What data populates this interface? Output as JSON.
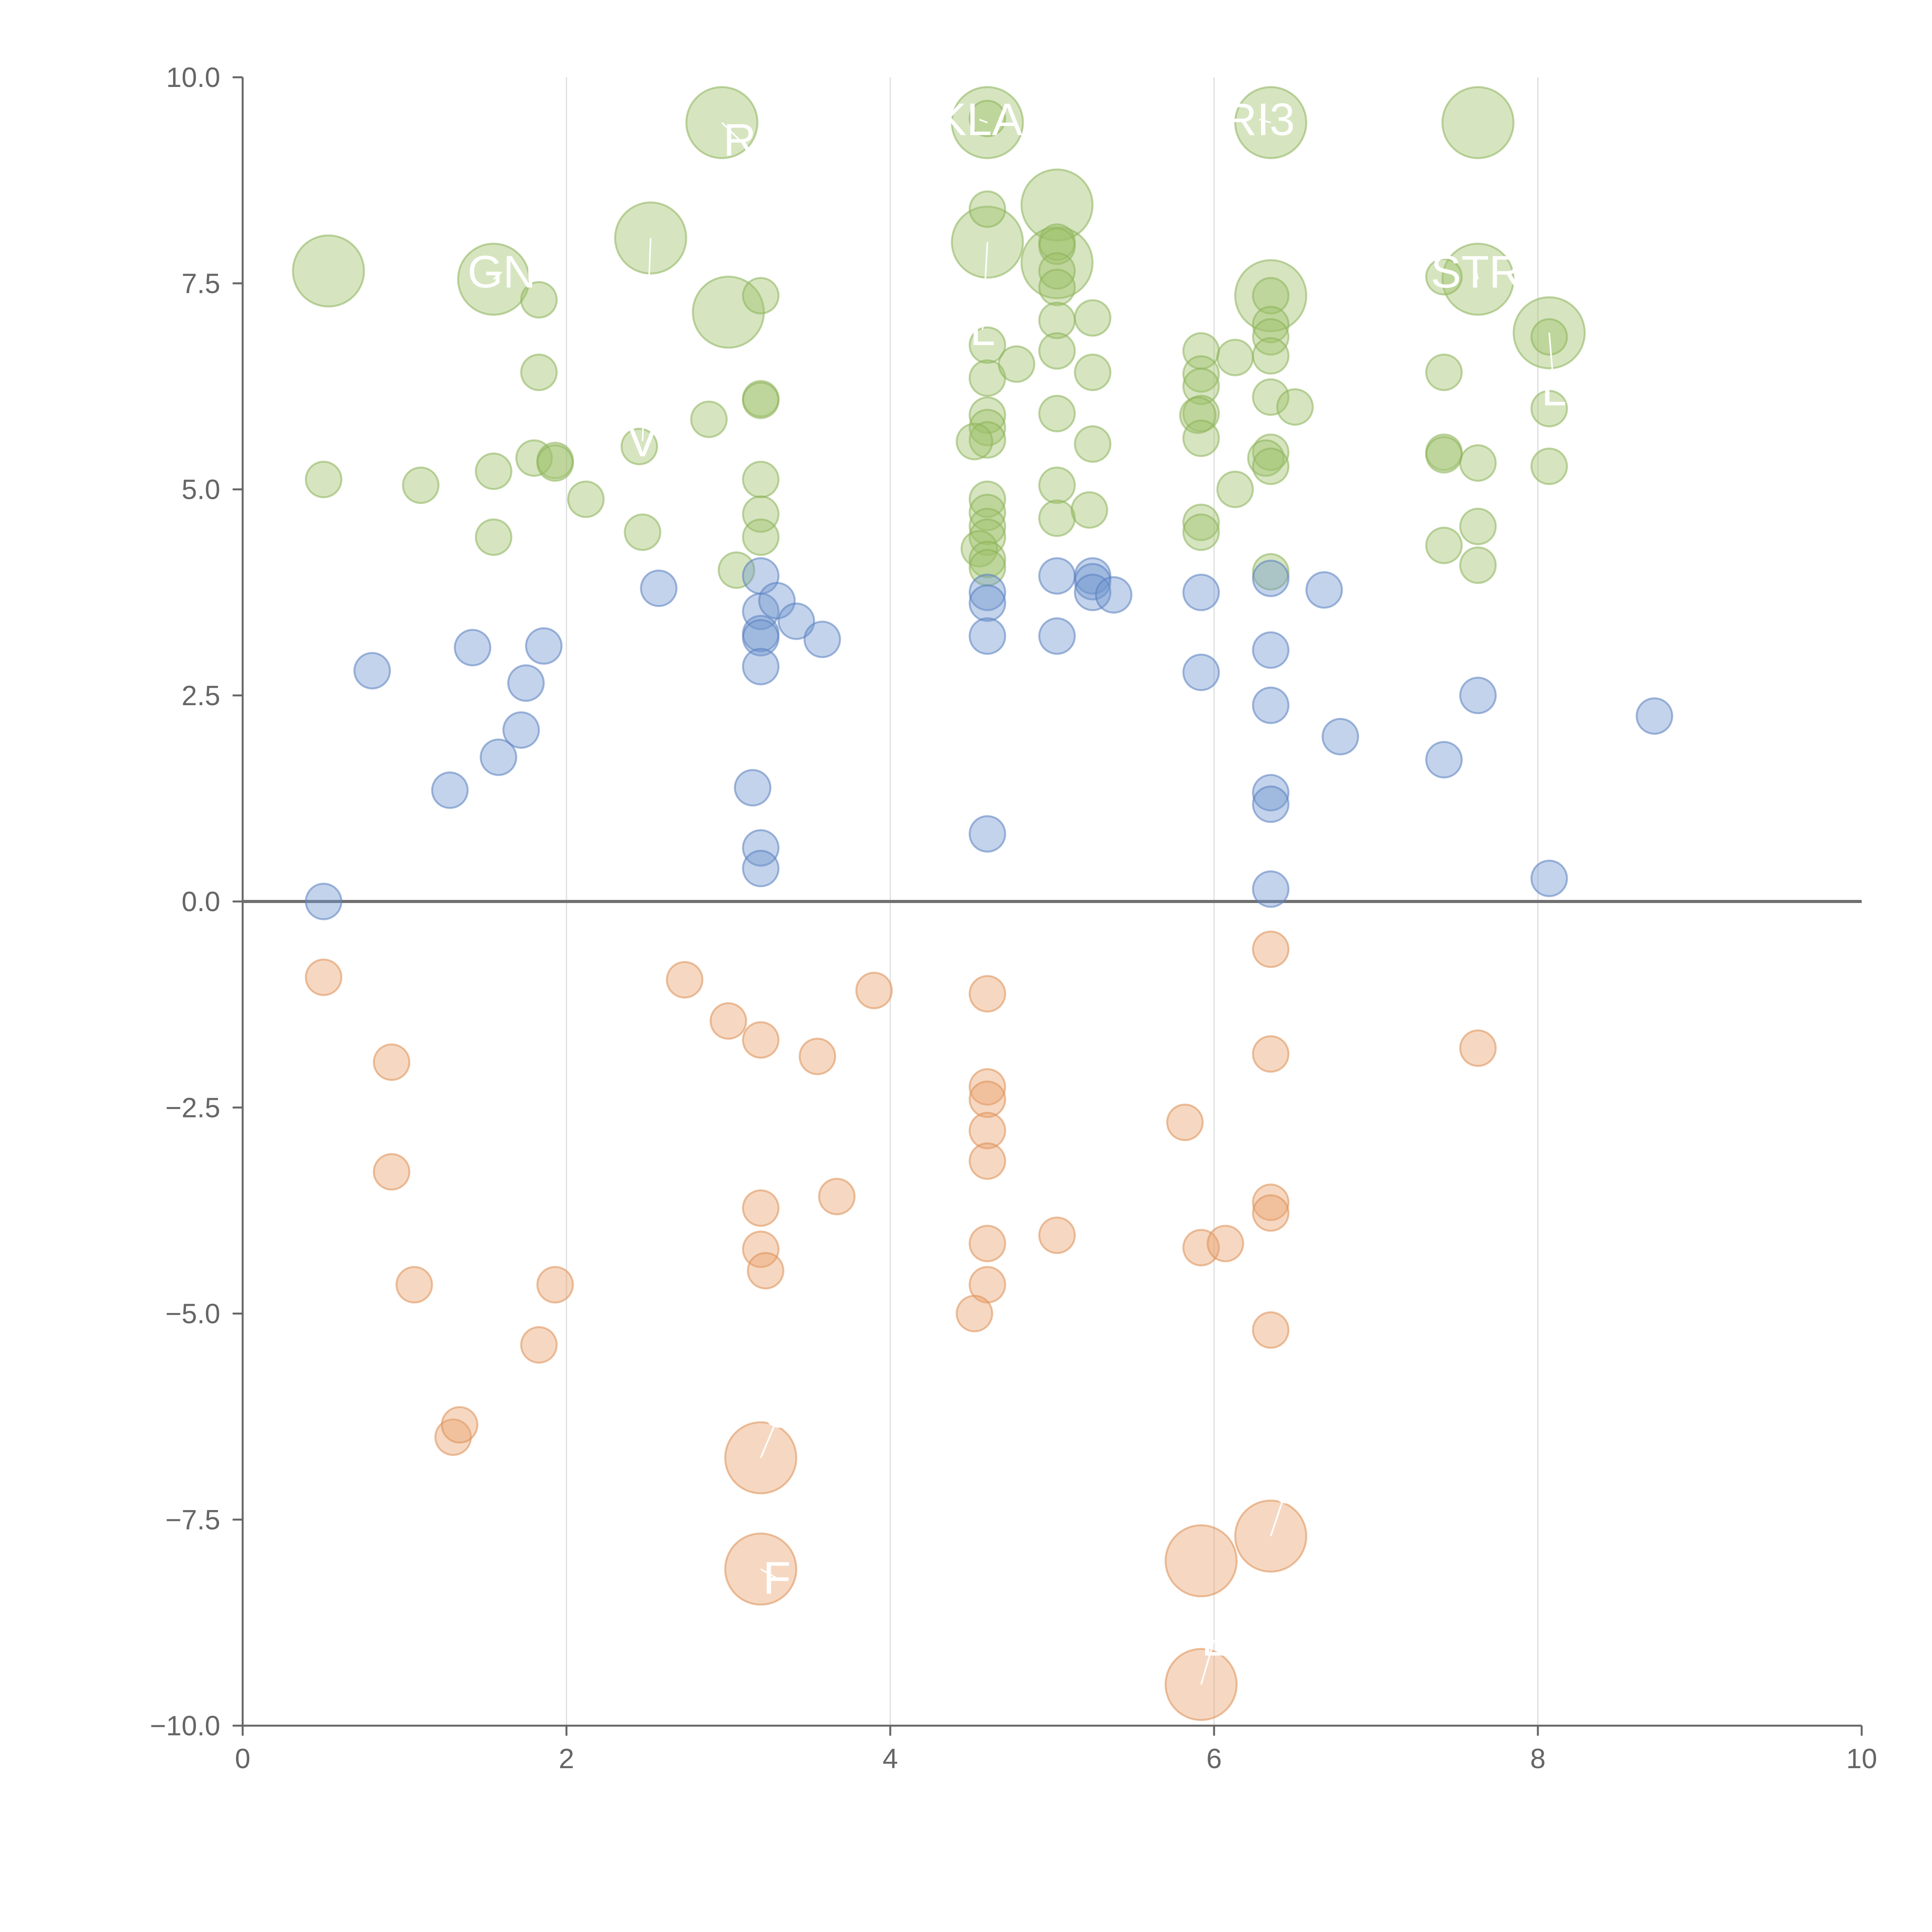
{
  "chart_data": {
    "type": "scatter",
    "title": "",
    "xlabel": "",
    "ylabel": "",
    "xlim": [
      0,
      10
    ],
    "ylim": [
      -10,
      10
    ],
    "x_ticks": [
      0,
      2,
      4,
      6,
      8,
      10
    ],
    "x_tick_labels": [
      "0",
      "2",
      "4",
      "6",
      "8",
      "10"
    ],
    "y_ticks": [
      10,
      7.5,
      5,
      2.5,
      0,
      -2.5,
      -5,
      -7.5,
      -10
    ],
    "y_tick_labels": [
      "10.0",
      "7.5",
      "5.0",
      "2.5",
      "0.0",
      "−2.5",
      "−5.0",
      "−7.5",
      "−10.0"
    ],
    "grid": "vertical",
    "reference_line_y": 0,
    "series": [
      {
        "name": "high",
        "color": "#9dc169",
        "stroke": "#8cb35a",
        "points": [
          [
            0.53,
            7.65,
            2
          ],
          [
            1.55,
            7.55,
            2
          ],
          [
            2.52,
            8.05,
            2
          ],
          [
            2.96,
            9.45,
            2
          ],
          [
            3.0,
            7.15,
            2
          ],
          [
            4.6,
            9.45,
            2
          ],
          [
            4.6,
            8.0,
            2
          ],
          [
            5.03,
            8.45,
            2
          ],
          [
            5.03,
            7.75,
            2
          ],
          [
            6.35,
            9.45,
            2
          ],
          [
            6.35,
            7.35,
            2
          ],
          [
            7.63,
            9.45,
            2
          ],
          [
            7.63,
            7.55,
            2
          ],
          [
            8.07,
            6.9,
            2
          ],
          [
            0.5,
            5.12,
            0
          ],
          [
            1.1,
            5.05,
            0
          ],
          [
            1.55,
            5.22,
            0
          ],
          [
            1.55,
            4.42,
            0
          ],
          [
            1.8,
            5.38,
            0
          ],
          [
            1.83,
            7.3,
            0
          ],
          [
            1.83,
            6.42,
            0
          ],
          [
            1.93,
            5.35,
            0
          ],
          [
            1.93,
            5.32,
            0
          ],
          [
            2.12,
            4.88,
            0
          ],
          [
            2.45,
            5.52,
            0
          ],
          [
            2.47,
            4.48,
            0
          ],
          [
            2.88,
            5.85,
            0
          ],
          [
            3.05,
            4.02,
            0
          ],
          [
            3.2,
            7.35,
            0
          ],
          [
            3.2,
            6.1,
            0
          ],
          [
            3.2,
            6.08,
            0
          ],
          [
            3.2,
            5.12,
            0
          ],
          [
            3.2,
            4.7,
            0
          ],
          [
            3.2,
            4.42,
            0
          ],
          [
            4.6,
            9.5,
            0
          ],
          [
            4.6,
            8.4,
            0
          ],
          [
            4.6,
            6.75,
            0
          ],
          [
            4.6,
            6.35,
            0
          ],
          [
            4.6,
            5.9,
            0
          ],
          [
            4.6,
            5.75,
            0
          ],
          [
            4.6,
            5.6,
            0
          ],
          [
            4.52,
            5.58,
            0
          ],
          [
            4.6,
            4.88,
            0
          ],
          [
            4.6,
            4.72,
            0
          ],
          [
            4.6,
            4.55,
            0
          ],
          [
            4.6,
            4.42,
            0
          ],
          [
            4.55,
            4.28,
            0
          ],
          [
            4.6,
            4.15,
            0
          ],
          [
            4.6,
            4.05,
            0
          ],
          [
            4.78,
            6.52,
            0
          ],
          [
            5.03,
            8.0,
            0
          ],
          [
            5.03,
            7.95,
            0
          ],
          [
            5.03,
            7.65,
            0
          ],
          [
            5.03,
            7.45,
            0
          ],
          [
            5.03,
            7.05,
            0
          ],
          [
            5.03,
            6.68,
            0
          ],
          [
            5.03,
            5.92,
            0
          ],
          [
            5.03,
            5.05,
            0
          ],
          [
            5.03,
            4.65,
            0
          ],
          [
            5.25,
            7.08,
            0
          ],
          [
            5.25,
            6.42,
            0
          ],
          [
            5.25,
            5.55,
            0
          ],
          [
            5.23,
            4.75,
            0
          ],
          [
            5.92,
            6.68,
            0
          ],
          [
            5.92,
            6.4,
            0
          ],
          [
            5.92,
            6.25,
            0
          ],
          [
            5.92,
            5.92,
            0
          ],
          [
            5.9,
            5.9,
            0
          ],
          [
            5.92,
            5.62,
            0
          ],
          [
            5.92,
            4.6,
            0
          ],
          [
            5.92,
            4.48,
            0
          ],
          [
            6.13,
            6.6,
            0
          ],
          [
            6.13,
            5.0,
            0
          ],
          [
            6.35,
            7.35,
            0
          ],
          [
            6.35,
            7.0,
            0
          ],
          [
            6.35,
            6.85,
            0
          ],
          [
            6.35,
            6.62,
            0
          ],
          [
            6.35,
            6.12,
            0
          ],
          [
            6.35,
            5.45,
            0
          ],
          [
            6.32,
            5.38,
            0
          ],
          [
            6.35,
            5.28,
            0
          ],
          [
            6.35,
            4.0,
            0
          ],
          [
            6.5,
            6.0,
            0
          ],
          [
            7.42,
            7.58,
            0
          ],
          [
            7.42,
            6.42,
            0
          ],
          [
            7.42,
            5.45,
            0
          ],
          [
            7.42,
            5.42,
            0
          ],
          [
            7.42,
            4.32,
            0
          ],
          [
            7.63,
            5.32,
            0
          ],
          [
            7.63,
            4.55,
            0
          ],
          [
            7.63,
            4.08,
            0
          ],
          [
            8.07,
            6.85,
            0
          ],
          [
            8.07,
            5.98,
            0
          ],
          [
            8.07,
            5.28,
            0
          ]
        ]
      },
      {
        "name": "mid",
        "color": "#6f95cf",
        "stroke": "#5a80c0",
        "points": [
          [
            0.5,
            0.0,
            0
          ],
          [
            0.8,
            2.8,
            0
          ],
          [
            1.28,
            1.35,
            0
          ],
          [
            1.42,
            3.08,
            0
          ],
          [
            1.58,
            1.75,
            0
          ],
          [
            1.72,
            2.08,
            0
          ],
          [
            1.75,
            2.65,
            0
          ],
          [
            1.86,
            3.1,
            0
          ],
          [
            2.57,
            3.8,
            0
          ],
          [
            3.15,
            1.38,
            0
          ],
          [
            3.2,
            3.95,
            0
          ],
          [
            3.2,
            3.52,
            0
          ],
          [
            3.2,
            3.25,
            0
          ],
          [
            3.2,
            3.2,
            0
          ],
          [
            3.2,
            2.85,
            0
          ],
          [
            3.2,
            0.65,
            0
          ],
          [
            3.2,
            0.4,
            0
          ],
          [
            3.3,
            3.65,
            0
          ],
          [
            3.42,
            3.4,
            0
          ],
          [
            3.58,
            3.18,
            0
          ],
          [
            4.6,
            3.75,
            0
          ],
          [
            4.6,
            3.62,
            0
          ],
          [
            4.6,
            3.22,
            0
          ],
          [
            4.6,
            0.82,
            0
          ],
          [
            5.03,
            3.95,
            0
          ],
          [
            5.03,
            3.22,
            0
          ],
          [
            5.25,
            3.95,
            0
          ],
          [
            5.25,
            3.88,
            0
          ],
          [
            5.25,
            3.75,
            0
          ],
          [
            5.38,
            3.72,
            0
          ],
          [
            5.92,
            3.75,
            0
          ],
          [
            5.92,
            2.78,
            0
          ],
          [
            6.35,
            3.92,
            0
          ],
          [
            6.35,
            3.05,
            0
          ],
          [
            6.35,
            2.38,
            0
          ],
          [
            6.35,
            1.32,
            0
          ],
          [
            6.35,
            1.18,
            0
          ],
          [
            6.35,
            0.15,
            0
          ],
          [
            6.68,
            3.78,
            0
          ],
          [
            6.78,
            2.0,
            0
          ],
          [
            7.42,
            1.72,
            0
          ],
          [
            7.63,
            2.5,
            0
          ],
          [
            8.07,
            0.28,
            0
          ],
          [
            8.72,
            2.25,
            0
          ]
        ]
      },
      {
        "name": "low",
        "color": "#e9a36e",
        "stroke": "#dd8f55",
        "points": [
          [
            0.5,
            -0.92,
            0
          ],
          [
            0.92,
            -1.95,
            0
          ],
          [
            0.92,
            -3.28,
            0
          ],
          [
            1.06,
            -4.65,
            0
          ],
          [
            1.3,
            -6.5,
            0
          ],
          [
            1.34,
            -6.35,
            0
          ],
          [
            1.83,
            -5.38,
            0
          ],
          [
            1.93,
            -4.65,
            0
          ],
          [
            2.73,
            -0.95,
            0
          ],
          [
            3.0,
            -1.45,
            0
          ],
          [
            3.2,
            -1.68,
            0
          ],
          [
            3.2,
            -3.72,
            0
          ],
          [
            3.2,
            -4.22,
            0
          ],
          [
            3.23,
            -4.48,
            0
          ],
          [
            3.55,
            -1.88,
            0
          ],
          [
            3.67,
            -3.58,
            0
          ],
          [
            3.9,
            -1.08,
            0
          ],
          [
            4.6,
            -1.12,
            0
          ],
          [
            4.6,
            -2.25,
            0
          ],
          [
            4.6,
            -2.4,
            0
          ],
          [
            4.6,
            -2.78,
            0
          ],
          [
            4.6,
            -3.15,
            0
          ],
          [
            4.6,
            -4.15,
            0
          ],
          [
            4.6,
            -4.65,
            0
          ],
          [
            4.52,
            -5.0,
            0
          ],
          [
            5.03,
            -4.05,
            0
          ],
          [
            5.82,
            -2.68,
            0
          ],
          [
            5.92,
            -4.2,
            0
          ],
          [
            6.07,
            -4.15,
            0
          ],
          [
            6.35,
            -0.58,
            0
          ],
          [
            6.35,
            -1.85,
            0
          ],
          [
            6.35,
            -3.65,
            0
          ],
          [
            6.35,
            -3.78,
            0
          ],
          [
            6.35,
            -5.2,
            0
          ],
          [
            7.63,
            -1.78,
            0
          ],
          [
            3.2,
            -6.75,
            2
          ],
          [
            3.2,
            -8.1,
            2
          ],
          [
            5.92,
            -8.0,
            2
          ],
          [
            5.92,
            -9.5,
            2
          ],
          [
            6.35,
            -7.7,
            2
          ]
        ]
      }
    ],
    "annotations": [
      {
        "text": "R",
        "x": 3.07,
        "y": 9.05,
        "px": 2.96,
        "py": 9.45
      },
      {
        "text": "KLA",
        "x": 4.55,
        "y": 9.3,
        "px": 4.6,
        "py": 9.45
      },
      {
        "text": "RI3",
        "x": 6.28,
        "y": 9.3,
        "px": 6.35,
        "py": 9.45
      },
      {
        "text": "GN",
        "x": 1.6,
        "y": 7.45,
        "px": 1.55,
        "py": 7.55
      },
      {
        "text": "STR",
        "x": 7.62,
        "y": 7.45,
        "px": 7.63,
        "py": 7.55
      },
      {
        "text": "L",
        "x": 4.57,
        "y": 6.75,
        "px": 4.6,
        "py": 8.0
      },
      {
        "text": "V",
        "x": 2.47,
        "y": 5.4,
        "px": 2.52,
        "py": 8.05
      },
      {
        "text": "L",
        "x": 8.1,
        "y": 6.02,
        "px": 8.07,
        "py": 6.9
      },
      {
        "text": "O",
        "x": 3.32,
        "y": -6.38,
        "px": 3.2,
        "py": -6.75
      },
      {
        "text": "F",
        "x": 3.3,
        "y": -8.4,
        "px": 3.2,
        "py": -8.1
      },
      {
        "text": "J",
        "x": 6.45,
        "y": -7.3,
        "px": 6.35,
        "py": -7.7
      },
      {
        "text": "L",
        "x": 6.0,
        "y": -9.15,
        "px": 5.92,
        "py": -9.5
      }
    ]
  }
}
